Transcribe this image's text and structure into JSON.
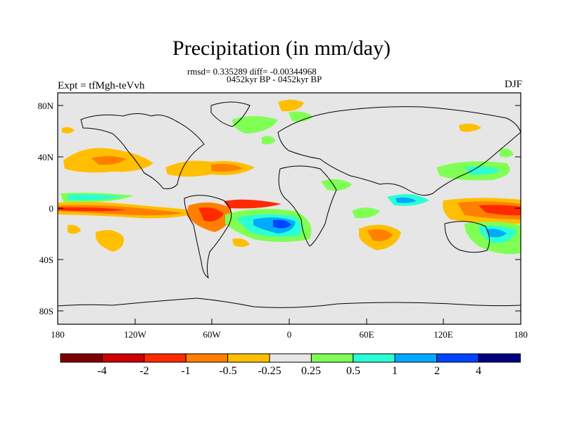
{
  "title": "Precipitation (in mm/day)",
  "stats": "rmsd= 0.335289 diff= -0.00344968",
  "period": "0452kyr BP - 0452kyr BP",
  "expt": "Expt = tfMgh-teVvh",
  "season": "DJF",
  "map": {
    "lat_ticks": [
      "80N",
      "40N",
      "0",
      "40S",
      "80S"
    ],
    "lon_ticks": [
      "180",
      "120W",
      "60W",
      "0",
      "60E",
      "120E",
      "180"
    ],
    "background_color": "#e6e6e6"
  },
  "colorbar": {
    "labels": [
      "-4",
      "-2",
      "-1",
      "-0.5",
      "-0.25",
      "0.25",
      "0.5",
      "1",
      "2",
      "4"
    ],
    "colors": [
      "#800000",
      "#cc0000",
      "#ff2a00",
      "#ff8000",
      "#ffbf00",
      "#e6e6e6",
      "#80ff55",
      "#2affd5",
      "#00aaff",
      "#0044ff",
      "#000080"
    ]
  }
}
